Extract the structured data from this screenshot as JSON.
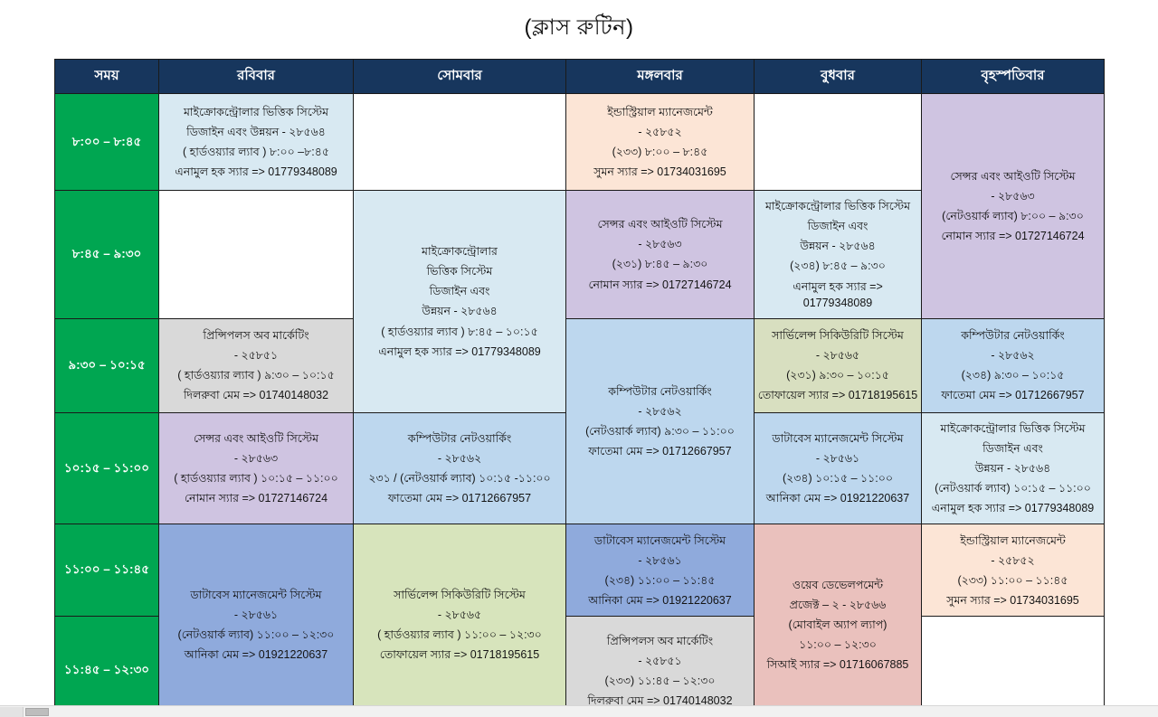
{
  "title": "(ক্লাস রুটিন)",
  "table": {
    "headers": [
      "সময়",
      "রবিবার",
      "সোমবার",
      "মঙ্গলবার",
      "বুধবার",
      "বৃহস্পতিবার"
    ],
    "time_slots": [
      "৮:০০ – ৮:৪৫",
      "৮:৪৫ – ৯:৩০",
      "৯:৩০ – ১০:১৫",
      "১০:১৫ – ১১:০০",
      "১১:০০ – ১১:৪৫",
      "১১:৪৫ – ১২:৩০"
    ],
    "cells": {
      "sun_0800": {
        "lines": [
          "মাইক্রোকন্ট্রোলার  ভিত্তিক সিস্টেম",
          "ডিজাইন এবং উন্নয়ন - ২৮৫৬৪",
          "( হার্ডওয়্যার ল্যাব ) ৮:০০ –৮:৪৫",
          "এনামুল হক স্যার =>  01779348089"
        ]
      },
      "tue_0800": {
        "lines": [
          "ইন্ডাস্ট্রিয়াল ম্যানেজমেন্ট",
          "- ২৫৮৫২",
          "(২৩৩) ৮:০০ – ৮:৪৫",
          "সুমন স্যার =>  01734031695"
        ]
      },
      "thu_0800": {
        "lines": [
          "সেন্সর এবং আইওটি সিস্টেম",
          "- ২৮৫৬৩",
          "(নেটওয়ার্ক ল্যাব)  ৮:০০ – ৯:৩০",
          "নোমান স্যার => 01727146724"
        ]
      },
      "mon_0845": {
        "lines": [
          "মাইক্রোকন্ট্রোলার",
          "ভিত্তিক সিস্টেম",
          "ডিজাইন এবং",
          "উন্নয়ন - ২৮৫৬৪",
          "( হার্ডওয়্যার ল্যাব )  ৮:৪৫ – ১০:১৫",
          "এনামুল হক স্যার => 01779348089"
        ]
      },
      "tue_0845": {
        "lines": [
          "সেন্সর এবং আইওটি সিস্টেম",
          "- ২৮৫৬৩",
          "(২৩১)  ৮:৪৫ – ৯:৩০",
          "নোমান স্যার => 01727146724"
        ]
      },
      "wed_0845": {
        "lines": [
          "মাইক্রোকন্ট্রোলার  ভিত্তিক সিস্টেম",
          "ডিজাইন এবং",
          "উন্নয়ন - ২৮৫৬৪",
          "(২৩৪)  ৮:৪৫ – ৯:৩০",
          "এনামুল হক স্যার => 01779348089"
        ]
      },
      "sun_0930": {
        "lines": [
          "প্রিন্সিপলস অব মার্কেটিং",
          "- ২৫৮৫১",
          "( হার্ডওয়্যার ল্যাব )  ৯:৩০ – ১০:১৫",
          "দিলরুবা মেম => 01740148032"
        ]
      },
      "tue_0930": {
        "lines": [
          "কম্পিউটার নেটওয়ার্কিং",
          "- ২৮৫৬২",
          "(নেটওয়ার্ক ল্যাব)  ৯:৩০ –  ১১:০০",
          "ফাতেমা মেম  => 01712667957"
        ]
      },
      "wed_0930": {
        "lines": [
          "সার্ভিলেন্স সিকিউরিটি সিস্টেম",
          "- ২৮৫৬৫",
          "(২৩১)  ৯:৩০ – ১০:১৫",
          "তোফায়েল স্যার => 01718195615"
        ]
      },
      "thu_0930": {
        "lines": [
          "কম্পিউটার নেটওয়ার্কিং",
          "- ২৮৫৬২",
          "(২৩৪)   ৯:৩০ – ১০:১৫",
          "ফাতেমা মেম  => 01712667957"
        ]
      },
      "sun_1015": {
        "lines": [
          "সেন্সর এবং আইওটি সিস্টেম",
          "- ২৮৫৬৩",
          "( হার্ডওয়্যার ল্যাব )  ১০:১৫ – ১১:০০",
          "নোমান স্যার => 01727146724"
        ]
      },
      "mon_1015": {
        "lines": [
          "কম্পিউটার নেটওয়ার্কিং",
          "- ২৮৫৬২",
          "২৩১ / (নেটওয়ার্ক ল্যাব)   ১০:১৫ -১১:০০",
          "ফাতেমা মেম  => 01712667957"
        ]
      },
      "wed_1015": {
        "lines": [
          "ডাটাবেস ম্যানেজমেন্ট সিস্টেম",
          "- ২৮৫৬১",
          "(২৩৪)  ১০:১৫ – ১১:০০",
          "আনিকা মেম => 01921220637"
        ]
      },
      "thu_1015": {
        "lines": [
          "মাইক্রোকন্ট্রোলার ভিত্তিক সিস্টেম",
          "ডিজাইন এবং",
          "উন্নয়ন - ২৮৫৬৪",
          "(নেটওয়ার্ক ল্যাব) ১০:১৫ – ১১:০০",
          "এনামুল হক স্যার => 01779348089"
        ]
      },
      "sun_1100": {
        "lines": [
          "ডাটাবেস ম্যানেজমেন্ট সিস্টেম",
          "- ২৮৫৬১",
          "(নেটওয়ার্ক ল্যাব) ১১:০০ –  ১২:৩০",
          "আনিকা মেম => 01921220637"
        ]
      },
      "mon_1100": {
        "lines": [
          "সার্ভিলেন্স সিকিউরিটি সিস্টেম",
          "- ২৮৫৬৫",
          "( হার্ডওয়্যার ল্যাব ) ১১:০০ –  ১২:৩০",
          "তোফায়েল স্যার => 01718195615"
        ]
      },
      "tue_1100": {
        "lines": [
          "ডাটাবেস ম্যানেজমেন্ট সিস্টেম",
          "- ২৮৫৬১",
          "(২৩৪)  ১১:০০ – ১১:৪৫",
          "আনিকা মেম => 01921220637"
        ]
      },
      "wed_1100": {
        "lines": [
          "ওয়েব ডেভেলপমেন্ট",
          "প্রজেক্ট – ২ - ২৮৫৬৬",
          "(মোবাইল অ্যাপ ল্যাপ)",
          "১১:০০ –  ১২:৩০",
          "সিআই স্যার => 01716067885"
        ]
      },
      "thu_1100": {
        "lines": [
          "ইন্ডাস্ট্রিয়াল ম্যানেজমেন্ট",
          "- ২৫৮৫২",
          "(২৩৩)  ১১:০০ – ১১:৪৫",
          "সুমন স্যার =>  01734031695"
        ]
      },
      "tue_1145": {
        "lines": [
          "প্রিন্সিপলস অব মার্কেটিং",
          "- ২৫৮৫১",
          "(২৩৩)  ১১:৪৫ – ১২:৩০",
          "দিলরুবা মেম => 01740148032"
        ]
      }
    }
  },
  "colors": {
    "header_bg": "#17365d",
    "time_column_bg": "#00a651",
    "light_blue": "#d8e9f2",
    "peach": "#fce5d6",
    "lavender": "#cfc4e1",
    "gray": "#d9d9d9",
    "steel_blue": "#bdd7ee",
    "olive_green": "#d8dfc0",
    "medium_blue": "#8faadc",
    "pale_green": "#d7e4bc",
    "pink": "#eac1bd"
  }
}
